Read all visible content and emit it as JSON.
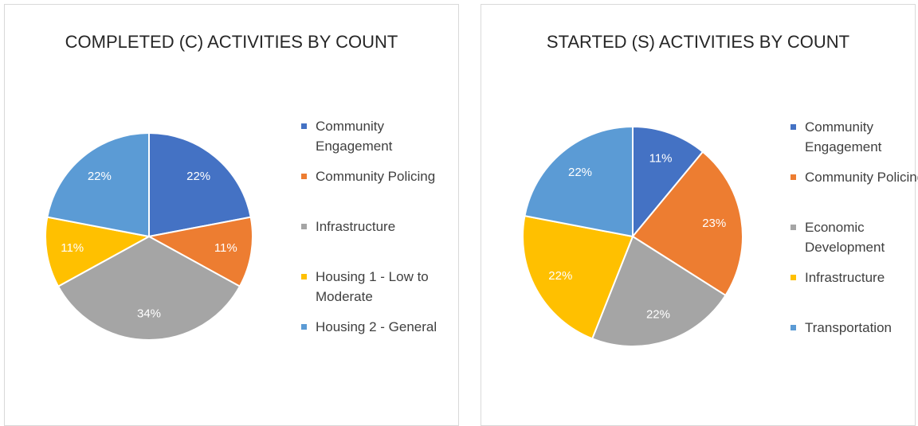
{
  "chart_data": [
    {
      "type": "pie",
      "title": "COMPLETED (C) ACTIVITIES BY COUNT",
      "categories": [
        "Community Engagement",
        "Community Policing",
        "Infrastructure",
        "Housing 1 - Low to Moderate",
        "Housing 2 - General"
      ],
      "values": [
        22,
        11,
        34,
        11,
        22
      ],
      "value_labels": [
        "22%",
        "11%",
        "34%",
        "11%",
        "22%"
      ],
      "colors": [
        "#4472c4",
        "#ed7d31",
        "#a5a5a5",
        "#ffc000",
        "#5b9bd5"
      ],
      "legend": "right"
    },
    {
      "type": "pie",
      "title": "STARTED (S) ACTIVITIES BY COUNT",
      "categories": [
        "Community Engagement",
        "Community Policing",
        "Economic Development",
        "Infrastructure",
        "Transportation"
      ],
      "values": [
        11,
        23,
        22,
        22,
        22
      ],
      "value_labels": [
        "11%",
        "23%",
        "22%",
        "22%",
        "22%"
      ],
      "colors": [
        "#4472c4",
        "#ed7d31",
        "#a5a5a5",
        "#ffc000",
        "#5b9bd5"
      ],
      "legend": "right"
    }
  ]
}
